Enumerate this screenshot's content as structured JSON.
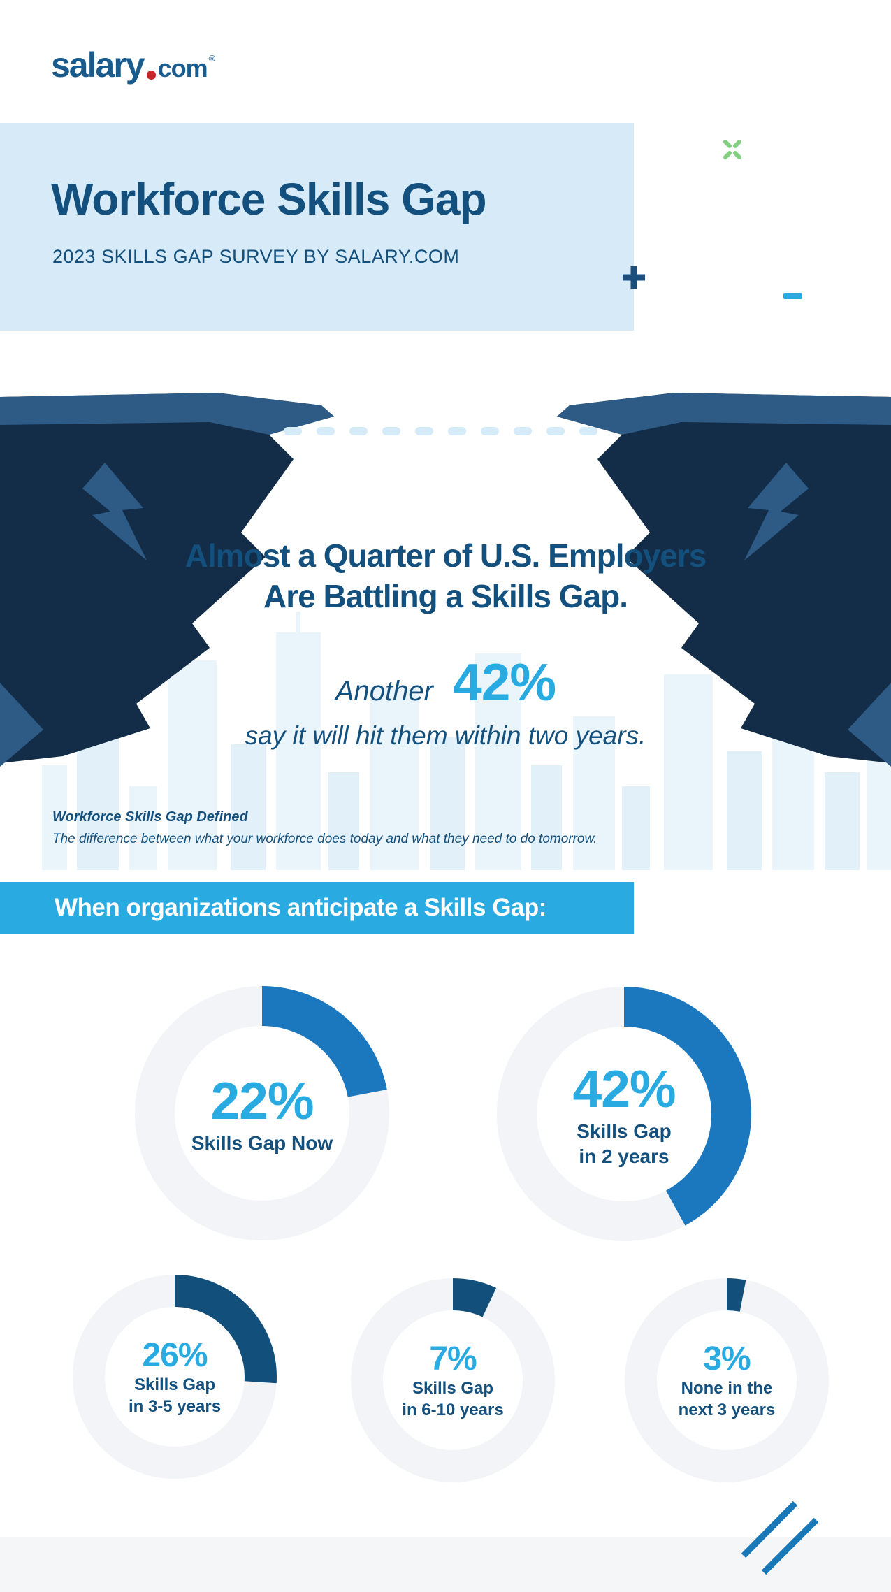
{
  "logo": {
    "name": "salary",
    "tld": "com",
    "registered": "®"
  },
  "header": {
    "title": "Workforce Skills Gap",
    "subtitle": "2023 SKILLS GAP SURVEY BY SALARY.COM"
  },
  "hero": {
    "heading_line1": "Almost a Quarter of U.S. Employers",
    "heading_line2": "Are Battling a Skills Gap.",
    "stat_prefix": "Another",
    "stat_value": "42%",
    "stat_suffix": "say it will hit them within two years.",
    "definition_title": "Workforce Skills Gap Defined",
    "definition_text": "The difference between what your workforce does today and what they need to do tomorrow."
  },
  "banner": {
    "text": "When organizations anticipate a Skills Gap:"
  },
  "chart_data": {
    "type": "donut",
    "title": "When organizations anticipate a Skills Gap:",
    "unit": "percent of organizations",
    "legend_position": "inside",
    "series": [
      {
        "label": "Skills Gap Now",
        "label_lines": [
          "Skills Gap Now"
        ],
        "value": 22,
        "value_label": "22%"
      },
      {
        "label": "Skills Gap in 2 years",
        "label_lines": [
          "Skills Gap",
          "in 2 years"
        ],
        "value": 42,
        "value_label": "42%"
      },
      {
        "label": "Skills Gap in 3-5 years",
        "label_lines": [
          "Skills Gap",
          "in 3-5 years"
        ],
        "value": 26,
        "value_label": "26%"
      },
      {
        "label": "Skills Gap in 6-10 years",
        "label_lines": [
          "Skills Gap",
          "in 6-10 years"
        ],
        "value": 7,
        "value_label": "7%"
      },
      {
        "label": "None in the next 3 years",
        "label_lines": [
          "None in the",
          "next 3 years"
        ],
        "value": 3,
        "value_label": "3%"
      }
    ]
  },
  "colors": {
    "header_bg": "#d6ebf7",
    "deep_blue": "#14507d",
    "bright_blue": "#29abe2",
    "arc_blue": "#1b78be",
    "arc_navy": "#134f7b",
    "ring_track": "#f2f4f7",
    "cliff_dark": "#132c47",
    "cliff_light": "#2d5b85",
    "dash_blue": "#d5ebf8",
    "logo_blue": "#1a5b8e",
    "logo_red": "#c9242b",
    "accent_green": "#82cf82",
    "footer_gray": "#f5f6f8",
    "slash_blue": "#1878b8"
  }
}
